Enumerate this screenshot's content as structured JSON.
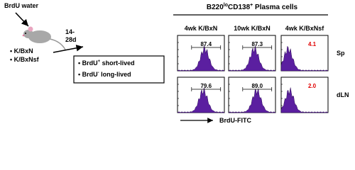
{
  "left": {
    "water": "BrdU water",
    "strains": [
      "K/BxN",
      "K/BxNsf"
    ],
    "time": [
      "14-",
      "28d"
    ],
    "box": [
      {
        "a": "BrdU",
        "sup": "+",
        "b": " short-lived"
      },
      {
        "a": "BrdU",
        "sup": "-",
        "b": " long-lived"
      }
    ]
  },
  "right": {
    "title": {
      "t1": "B220",
      "sup1": "lo",
      "t2": "CD138",
      "sup2": "+",
      "t3": " Plasma cells"
    },
    "columns": [
      "4wk K/BxN",
      "10wk K/BxN",
      "4wk K/BxNsf"
    ],
    "rows": [
      "Sp",
      "dLN"
    ],
    "gates": [
      [
        "87.4",
        "87.3",
        "4.1"
      ],
      [
        "79.6",
        "89.0",
        "2.0"
      ]
    ],
    "axis_label": "BrdU-FITC"
  }
}
